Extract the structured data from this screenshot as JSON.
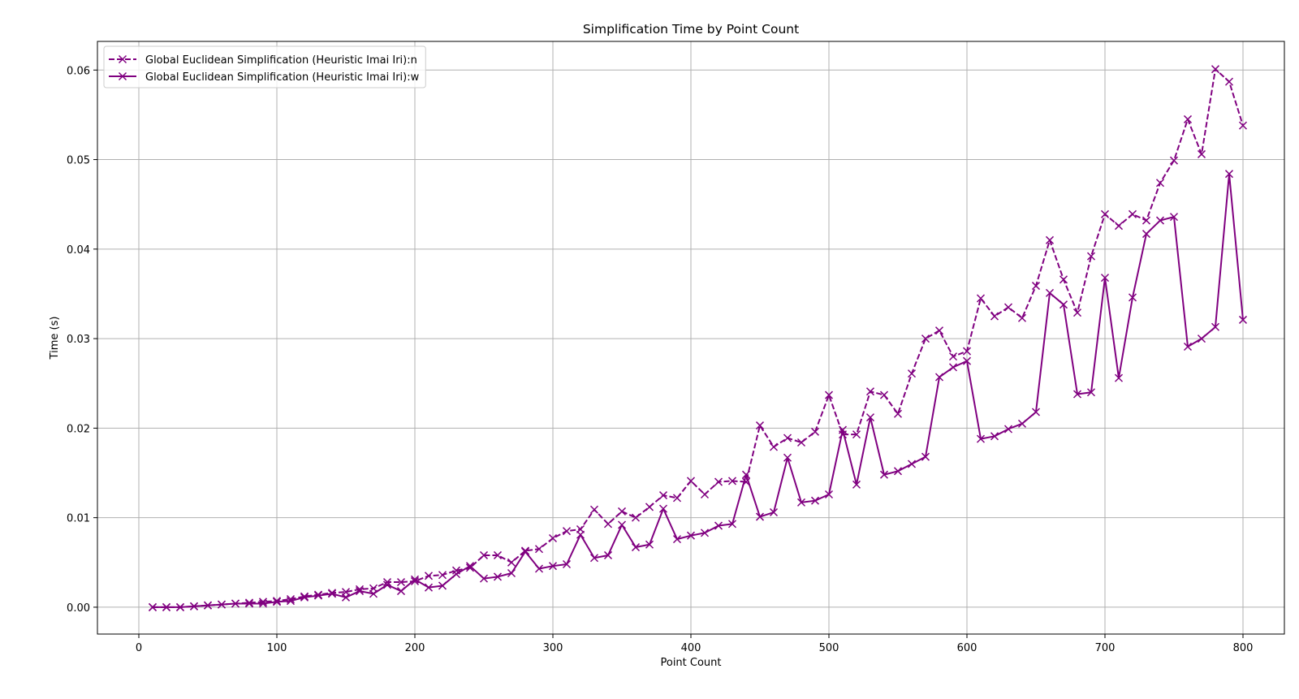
{
  "chart_data": {
    "type": "line",
    "title": "Simplification Time by Point Count",
    "xlabel": "Point Count",
    "ylabel": "Time (s)",
    "xlim": [
      -30,
      830
    ],
    "ylim": [
      -0.003,
      0.0632
    ],
    "xticks": [
      0,
      100,
      200,
      300,
      400,
      500,
      600,
      700,
      800
    ],
    "yticks": [
      0.0,
      0.01,
      0.02,
      0.03,
      0.04,
      0.05,
      0.06
    ],
    "xtick_labels": [
      "0",
      "100",
      "200",
      "300",
      "400",
      "500",
      "600",
      "700",
      "800"
    ],
    "ytick_labels": [
      "0.00",
      "0.01",
      "0.02",
      "0.03",
      "0.04",
      "0.05",
      "0.06"
    ],
    "grid": true,
    "legend_position": "upper-left",
    "color": "#800080",
    "x": [
      10,
      20,
      30,
      40,
      50,
      60,
      70,
      80,
      90,
      100,
      110,
      120,
      130,
      140,
      150,
      160,
      170,
      180,
      190,
      200,
      210,
      220,
      230,
      240,
      250,
      260,
      270,
      280,
      290,
      300,
      310,
      320,
      330,
      340,
      350,
      360,
      370,
      380,
      390,
      400,
      410,
      420,
      430,
      440,
      450,
      460,
      470,
      480,
      490,
      500,
      510,
      520,
      530,
      540,
      550,
      560,
      570,
      580,
      590,
      600,
      610,
      620,
      630,
      640,
      650,
      660,
      670,
      680,
      690,
      700,
      710,
      720,
      730,
      740,
      750,
      760,
      770,
      780,
      790,
      800
    ],
    "series": [
      {
        "name": "Global Euclidean Simplification (Heuristic Imai Iri):n",
        "linestyle": "dashed",
        "marker": "x",
        "values": [
          0.0,
          0.0,
          0.0,
          0.0001,
          0.0002,
          0.0003,
          0.0004,
          0.0005,
          0.0006,
          0.0007,
          0.0009,
          0.0012,
          0.0014,
          0.0016,
          0.0017,
          0.002,
          0.0021,
          0.0028,
          0.0028,
          0.0029,
          0.0035,
          0.0036,
          0.0041,
          0.0044,
          0.0058,
          0.0058,
          0.005,
          0.0063,
          0.0065,
          0.0077,
          0.0085,
          0.0087,
          0.0109,
          0.0093,
          0.0107,
          0.01,
          0.0112,
          0.0125,
          0.0122,
          0.0141,
          0.0126,
          0.014,
          0.0141,
          0.014,
          0.0203,
          0.0179,
          0.0189,
          0.0184,
          0.0196,
          0.0237,
          0.0193,
          0.0193,
          0.0241,
          0.0237,
          0.0216,
          0.0261,
          0.03,
          0.0309,
          0.028,
          0.0286,
          0.0345,
          0.0325,
          0.0335,
          0.0323,
          0.0359,
          0.041,
          0.0366,
          0.0329,
          0.0392,
          0.0439,
          0.0426,
          0.0439,
          0.0432,
          0.0474,
          0.0499,
          0.0545,
          0.0506,
          0.0601,
          0.0587,
          0.0538
        ]
      },
      {
        "name": "Global Euclidean Simplification (Heuristic Imai Iri):w",
        "linestyle": "solid",
        "marker": "x",
        "values": [
          0.0,
          0.0,
          0.0,
          0.0001,
          0.0002,
          0.0003,
          0.0004,
          0.0004,
          0.0004,
          0.0006,
          0.0007,
          0.0011,
          0.0013,
          0.0015,
          0.0011,
          0.0018,
          0.0015,
          0.0025,
          0.0018,
          0.0031,
          0.0022,
          0.0024,
          0.0037,
          0.0046,
          0.0032,
          0.0034,
          0.0038,
          0.0062,
          0.0043,
          0.0046,
          0.0048,
          0.0081,
          0.0055,
          0.0058,
          0.0092,
          0.0067,
          0.007,
          0.011,
          0.0076,
          0.008,
          0.0083,
          0.0091,
          0.0093,
          0.0148,
          0.0101,
          0.0106,
          0.0167,
          0.0117,
          0.0119,
          0.0126,
          0.0198,
          0.0137,
          0.0212,
          0.0148,
          0.0152,
          0.016,
          0.0168,
          0.0257,
          0.0268,
          0.0275,
          0.0188,
          0.0191,
          0.0199,
          0.0205,
          0.0218,
          0.0351,
          0.0338,
          0.0238,
          0.024,
          0.0368,
          0.0256,
          0.0346,
          0.0417,
          0.0432,
          0.0436,
          0.0291,
          0.03,
          0.0313,
          0.0484,
          0.0321
        ]
      }
    ]
  }
}
